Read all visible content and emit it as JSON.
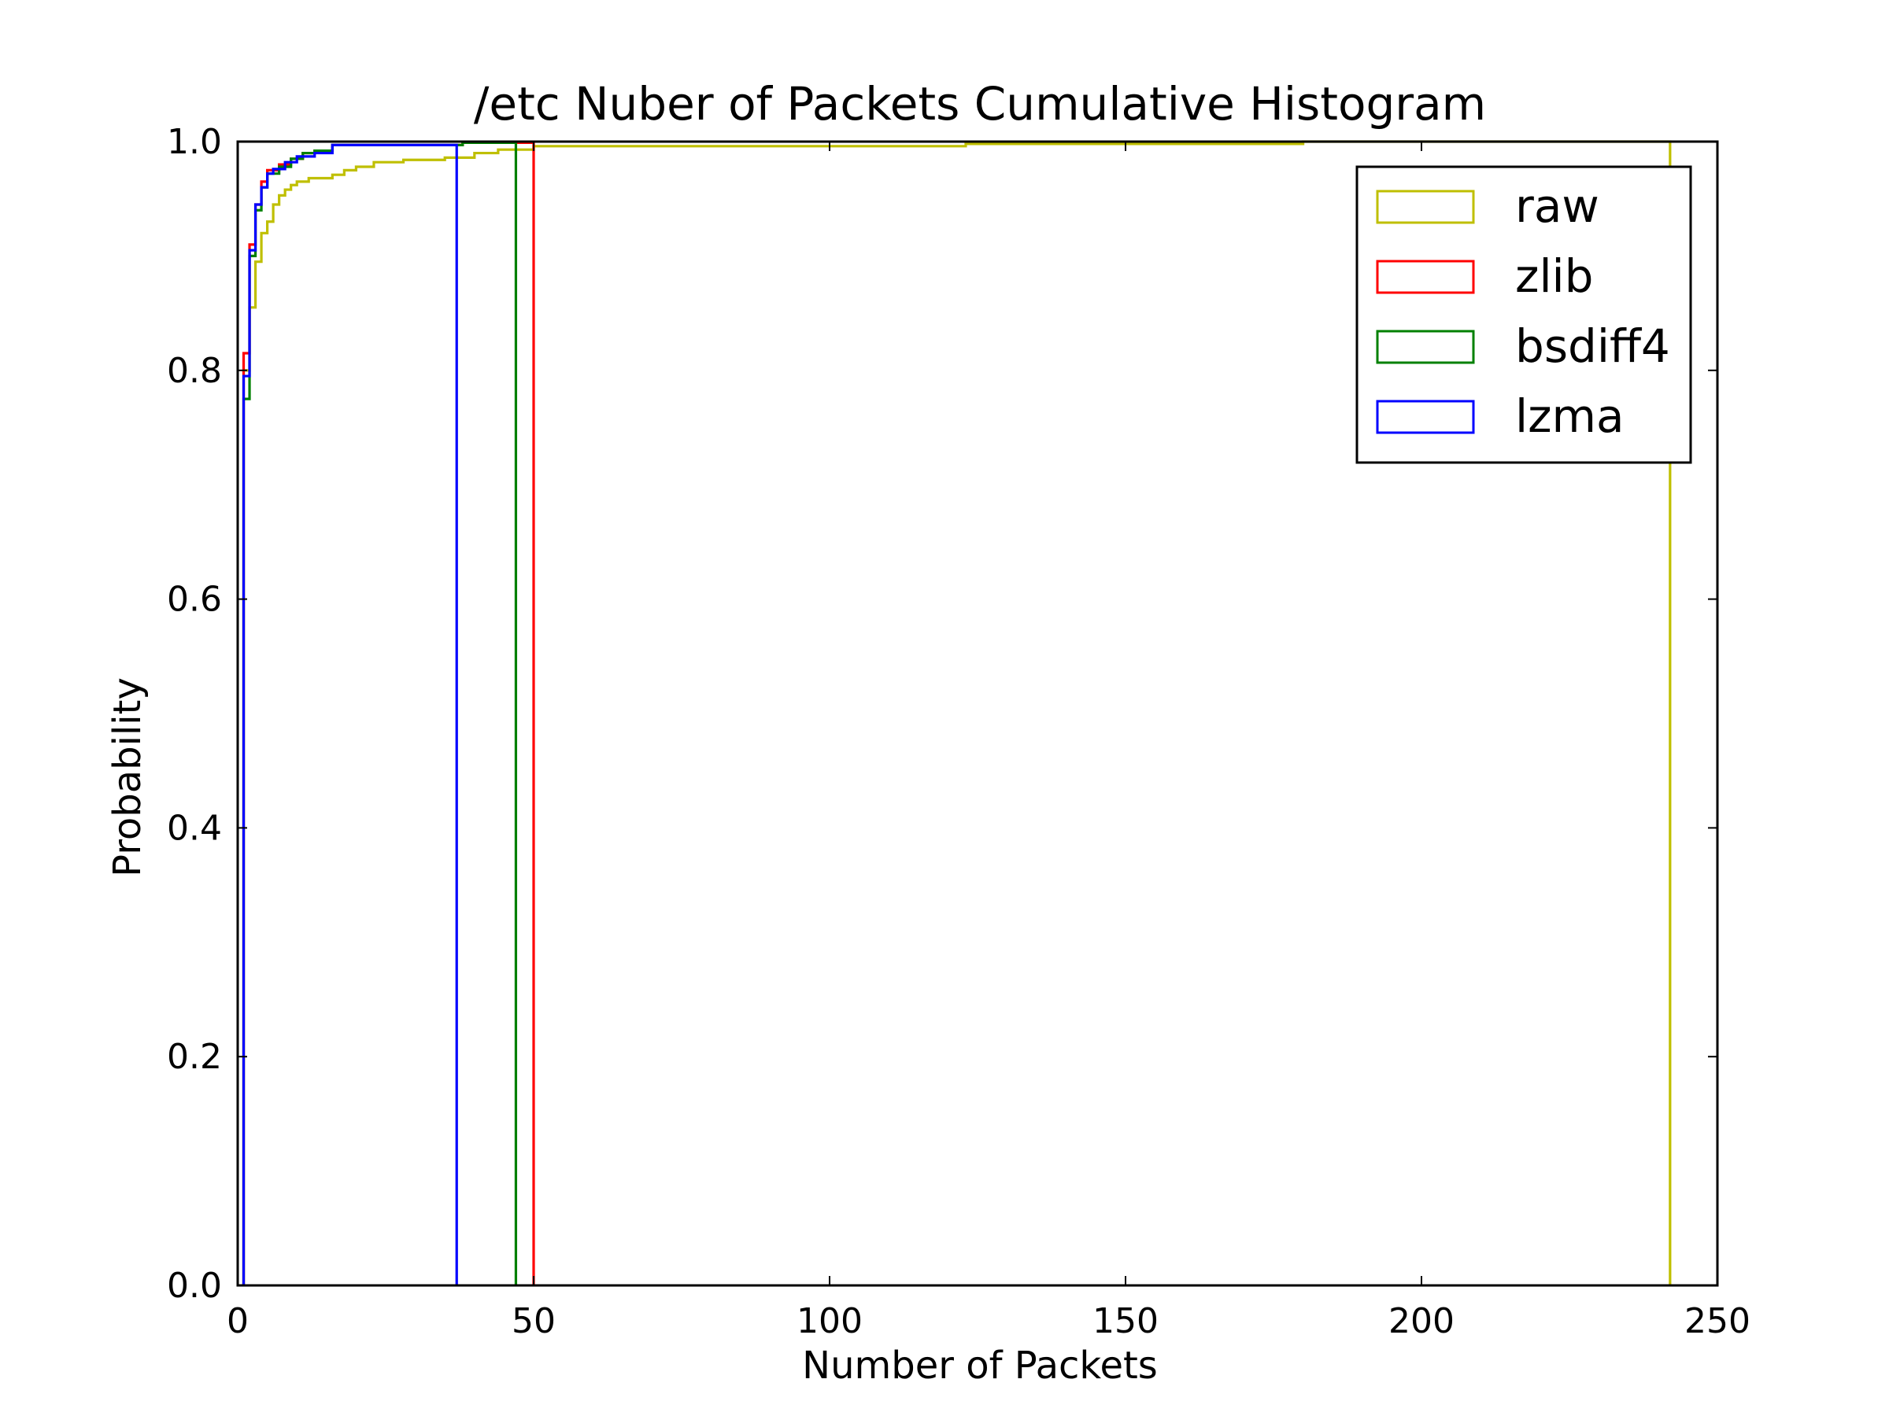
{
  "chart_data": {
    "type": "step",
    "title": "/etc Nuber of Packets Cumulative Histogram",
    "xlabel": "Number of Packets",
    "ylabel": "Probability",
    "xlim": [
      0,
      250
    ],
    "ylim": [
      0,
      1.0
    ],
    "xticks": [
      0,
      50,
      100,
      150,
      200,
      250
    ],
    "yticks": [
      0.0,
      0.2,
      0.4,
      0.6,
      0.8,
      1.0
    ],
    "xtick_labels": [
      "0",
      "50",
      "100",
      "150",
      "200",
      "250"
    ],
    "ytick_labels": [
      "0.0",
      "0.2",
      "0.4",
      "0.6",
      "0.8",
      "1.0"
    ],
    "grid": false,
    "legend_position": "top-right",
    "series": [
      {
        "name": "raw",
        "color": "#bfbf00",
        "points": [
          [
            1,
            0.0
          ],
          [
            1,
            0.8
          ],
          [
            2,
            0.8
          ],
          [
            2,
            0.855
          ],
          [
            3,
            0.855
          ],
          [
            3,
            0.895
          ],
          [
            4,
            0.895
          ],
          [
            4,
            0.92
          ],
          [
            5,
            0.92
          ],
          [
            5,
            0.93
          ],
          [
            6,
            0.93
          ],
          [
            6,
            0.945
          ],
          [
            7,
            0.945
          ],
          [
            7,
            0.953
          ],
          [
            8,
            0.953
          ],
          [
            8,
            0.958
          ],
          [
            9,
            0.958
          ],
          [
            9,
            0.962
          ],
          [
            10,
            0.962
          ],
          [
            10,
            0.965
          ],
          [
            12,
            0.965
          ],
          [
            12,
            0.968
          ],
          [
            16,
            0.968
          ],
          [
            16,
            0.971
          ],
          [
            18,
            0.971
          ],
          [
            18,
            0.975
          ],
          [
            20,
            0.975
          ],
          [
            20,
            0.978
          ],
          [
            23,
            0.978
          ],
          [
            23,
            0.982
          ],
          [
            28,
            0.982
          ],
          [
            28,
            0.984
          ],
          [
            35,
            0.984
          ],
          [
            35,
            0.986
          ],
          [
            40,
            0.986
          ],
          [
            40,
            0.99
          ],
          [
            44,
            0.99
          ],
          [
            44,
            0.993
          ],
          [
            50,
            0.993
          ],
          [
            50,
            0.996
          ],
          [
            123,
            0.996
          ],
          [
            123,
            0.998
          ],
          [
            180,
            0.998
          ],
          [
            180,
            1.0
          ],
          [
            242,
            1.0
          ],
          [
            242,
            0.0
          ]
        ]
      },
      {
        "name": "zlib",
        "color": "#ff0000",
        "points": [
          [
            1,
            0.0
          ],
          [
            1,
            0.815
          ],
          [
            2,
            0.815
          ],
          [
            2,
            0.91
          ],
          [
            3,
            0.91
          ],
          [
            3,
            0.945
          ],
          [
            4,
            0.945
          ],
          [
            4,
            0.965
          ],
          [
            5,
            0.965
          ],
          [
            5,
            0.975
          ],
          [
            7,
            0.975
          ],
          [
            7,
            0.98
          ],
          [
            9,
            0.98
          ],
          [
            9,
            0.985
          ],
          [
            11,
            0.985
          ],
          [
            11,
            0.99
          ],
          [
            13,
            0.99
          ],
          [
            13,
            0.992
          ],
          [
            16,
            0.992
          ],
          [
            16,
            0.997
          ],
          [
            38,
            0.997
          ],
          [
            38,
            0.999
          ],
          [
            50,
            0.999
          ],
          [
            50,
            0.0
          ]
        ]
      },
      {
        "name": "bsdiff4",
        "color": "#008000",
        "points": [
          [
            1,
            0.0
          ],
          [
            1,
            0.775
          ],
          [
            2,
            0.775
          ],
          [
            2,
            0.9
          ],
          [
            3,
            0.9
          ],
          [
            3,
            0.94
          ],
          [
            4,
            0.94
          ],
          [
            4,
            0.96
          ],
          [
            5,
            0.96
          ],
          [
            5,
            0.972
          ],
          [
            7,
            0.972
          ],
          [
            7,
            0.978
          ],
          [
            9,
            0.978
          ],
          [
            9,
            0.985
          ],
          [
            11,
            0.985
          ],
          [
            11,
            0.99
          ],
          [
            13,
            0.99
          ],
          [
            13,
            0.992
          ],
          [
            16,
            0.992
          ],
          [
            16,
            0.997
          ],
          [
            38,
            0.997
          ],
          [
            38,
            0.999
          ],
          [
            47,
            0.999
          ],
          [
            47,
            0.0
          ]
        ]
      },
      {
        "name": "lzma",
        "color": "#0000ff",
        "points": [
          [
            1,
            0.0
          ],
          [
            1,
            0.795
          ],
          [
            2,
            0.795
          ],
          [
            2,
            0.905
          ],
          [
            3,
            0.905
          ],
          [
            3,
            0.945
          ],
          [
            4,
            0.945
          ],
          [
            4,
            0.96
          ],
          [
            5,
            0.96
          ],
          [
            5,
            0.972
          ],
          [
            6,
            0.972
          ],
          [
            6,
            0.976
          ],
          [
            8,
            0.976
          ],
          [
            8,
            0.982
          ],
          [
            10,
            0.982
          ],
          [
            10,
            0.987
          ],
          [
            13,
            0.987
          ],
          [
            13,
            0.99
          ],
          [
            16,
            0.99
          ],
          [
            16,
            0.997
          ],
          [
            37,
            0.997
          ],
          [
            37,
            0.0
          ]
        ]
      }
    ]
  }
}
